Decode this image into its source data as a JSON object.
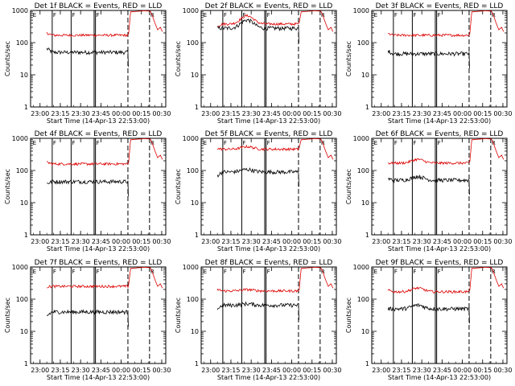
{
  "chart_data": {
    "type": "line",
    "layout": "3x3 grid",
    "y_scale": "log",
    "ylim": [
      1,
      1000
    ],
    "ylabel": "Counts/sec",
    "xlabel": "Start Time (14-Apr-13 22:53:00)",
    "x_ticks": [
      "23:00",
      "23:15",
      "23:30",
      "23:45",
      "00:00",
      "00:15",
      "00:30"
    ],
    "y_ticks": [
      "1",
      "10",
      "100",
      "1000"
    ],
    "x_range_minutes": [
      0,
      100
    ],
    "event_markers": {
      "solid_minutes": [
        16,
        30,
        47,
        48
      ],
      "dashed_minutes": [
        72,
        88
      ],
      "marker_labels": [
        "E",
        "F",
        "F",
        "F",
        "R"
      ]
    },
    "series_colors": {
      "black": "#000000",
      "red": "#dd0000"
    },
    "panels": [
      {
        "title": "Det 1f BLACK = Events, RED = LLD",
        "black_level": 50,
        "red_level": 170,
        "black_start": 65,
        "red_start": 200,
        "bump": 1.0
      },
      {
        "title": "Det 2f BLACK = Events, RED = LLD",
        "black_level": 280,
        "red_level": 380,
        "black_start": 280,
        "red_start": 330,
        "bump": 1.8
      },
      {
        "title": "Det 3f BLACK = Events, RED = LLD",
        "black_level": 45,
        "red_level": 170,
        "black_start": 55,
        "red_start": 190,
        "bump": 1.0
      },
      {
        "title": "Det 4f BLACK = Events, RED = LLD",
        "black_level": 45,
        "red_level": 160,
        "black_start": 40,
        "red_start": 180,
        "bump": 1.0
      },
      {
        "title": "Det 5f BLACK = Events, RED = LLD",
        "black_level": 90,
        "red_level": 460,
        "black_start": 70,
        "red_start": 480,
        "bump": 1.2
      },
      {
        "title": "Det 6f BLACK = Events, RED = LLD",
        "black_level": 50,
        "red_level": 170,
        "black_start": 55,
        "red_start": 170,
        "bump": 1.3
      },
      {
        "title": "Det 7f BLACK = Events, RED = LLD",
        "black_level": 40,
        "red_level": 250,
        "black_start": 30,
        "red_start": 240,
        "bump": 1.0
      },
      {
        "title": "Det 8f BLACK = Events, RED = LLD",
        "black_level": 65,
        "red_level": 180,
        "black_start": 50,
        "red_start": 200,
        "bump": 1.1
      },
      {
        "title": "Det 9f BLACK = Events, RED = LLD",
        "black_level": 50,
        "red_level": 170,
        "black_start": 50,
        "red_start": 190,
        "bump": 1.3
      }
    ]
  }
}
